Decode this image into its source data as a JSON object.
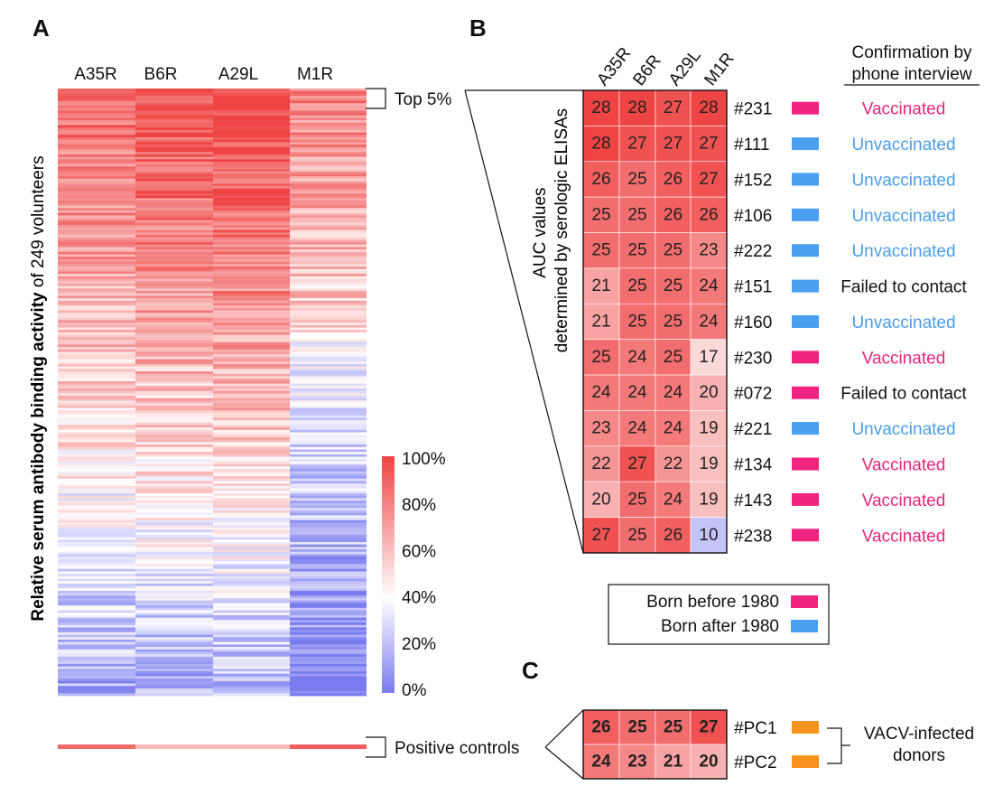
{
  "panel_labels": {
    "a": "A",
    "b": "B",
    "c": "C"
  },
  "colors": {
    "low": "#7b7bf0",
    "mid": "#ffffff",
    "high": "#ef4444",
    "born_before_1980": "#f0237f",
    "born_after_1980": "#4a9ff0",
    "vaccinated_text": "#e8267c",
    "unvaccinated_text": "#4a9ee8",
    "failed_text": "#111111",
    "positive_control": "#f7931e"
  },
  "panel_a": {
    "columns": [
      "A35R",
      "B6R",
      "A29L",
      "M1R"
    ],
    "ylabel_bold": "Relative serum antibody binding activity",
    "ylabel_rest": " of 249 volunteers",
    "top_label": "Top 5%",
    "positive_controls_label": "Positive controls",
    "n_volunteers": 249
  },
  "colorbar": {
    "ticks": [
      "100%",
      "80%",
      "60%",
      "40%",
      "20%",
      "0%"
    ]
  },
  "panel_b": {
    "ylabel_line1": "AUC values",
    "ylabel_line2": "determined by serologic ELISAs",
    "confirm_line1": "Confirmation by",
    "confirm_line2": "phone interview",
    "legend": [
      {
        "label": "Born before 1980",
        "key": "born_before_1980"
      },
      {
        "label": "Born after 1980",
        "key": "born_after_1980"
      }
    ]
  },
  "panel_c": {
    "group_label_line1": "VACV-infected",
    "group_label_line2": "donors"
  },
  "chart_data": [
    {
      "type": "heatmap",
      "title": "",
      "x_categories": [
        "A35R",
        "B6R",
        "A29L",
        "M1R"
      ],
      "value_range": [
        0,
        100
      ],
      "units": "% relative binding activity",
      "rows": 249,
      "note": "Colour scale 0% blue - 40% white - 100% red; rows sorted by overall binding, top 5% highlighted"
    },
    {
      "type": "heatmap",
      "title": "AUC values determined by serologic ELISAs",
      "x_categories": [
        "A35R",
        "B6R",
        "A29L",
        "M1R"
      ],
      "value_range": [
        10,
        28
      ],
      "rows": [
        {
          "id": "#231",
          "values": [
            28,
            28,
            27,
            28
          ],
          "born": "born_before_1980",
          "status": "Vaccinated",
          "status_key": "vaccinated_text"
        },
        {
          "id": "#111",
          "values": [
            28,
            27,
            27,
            27
          ],
          "born": "born_after_1980",
          "status": "Unvaccinated",
          "status_key": "unvaccinated_text"
        },
        {
          "id": "#152",
          "values": [
            26,
            25,
            26,
            27
          ],
          "born": "born_after_1980",
          "status": "Unvaccinated",
          "status_key": "unvaccinated_text"
        },
        {
          "id": "#106",
          "values": [
            25,
            25,
            26,
            26
          ],
          "born": "born_after_1980",
          "status": "Unvaccinated",
          "status_key": "unvaccinated_text"
        },
        {
          "id": "#222",
          "values": [
            25,
            25,
            25,
            23
          ],
          "born": "born_after_1980",
          "status": "Unvaccinated",
          "status_key": "unvaccinated_text"
        },
        {
          "id": "#151",
          "values": [
            21,
            25,
            25,
            24
          ],
          "born": "born_after_1980",
          "status": "Failed to contact",
          "status_key": "failed_text"
        },
        {
          "id": "#160",
          "values": [
            21,
            25,
            25,
            24
          ],
          "born": "born_after_1980",
          "status": "Unvaccinated",
          "status_key": "unvaccinated_text"
        },
        {
          "id": "#230",
          "values": [
            25,
            24,
            25,
            17
          ],
          "born": "born_before_1980",
          "status": "Vaccinated",
          "status_key": "vaccinated_text"
        },
        {
          "id": "#072",
          "values": [
            24,
            24,
            24,
            20
          ],
          "born": "born_before_1980",
          "status": "Failed to contact",
          "status_key": "failed_text"
        },
        {
          "id": "#221",
          "values": [
            23,
            24,
            24,
            19
          ],
          "born": "born_after_1980",
          "status": "Unvaccinated",
          "status_key": "unvaccinated_text"
        },
        {
          "id": "#134",
          "values": [
            22,
            27,
            22,
            19
          ],
          "born": "born_before_1980",
          "status": "Vaccinated",
          "status_key": "vaccinated_text"
        },
        {
          "id": "#143",
          "values": [
            20,
            25,
            24,
            19
          ],
          "born": "born_before_1980",
          "status": "Vaccinated",
          "status_key": "vaccinated_text"
        },
        {
          "id": "#238",
          "values": [
            27,
            25,
            26,
            10
          ],
          "born": "born_before_1980",
          "status": "Vaccinated",
          "status_key": "vaccinated_text"
        }
      ]
    },
    {
      "type": "heatmap",
      "title": "VACV-infected donors",
      "x_categories": [
        "A35R",
        "B6R",
        "A29L",
        "M1R"
      ],
      "value_range": [
        10,
        28
      ],
      "rows": [
        {
          "id": "#PC1",
          "values": [
            26,
            25,
            25,
            27
          ]
        },
        {
          "id": "#PC2",
          "values": [
            24,
            23,
            21,
            20
          ]
        }
      ]
    }
  ]
}
